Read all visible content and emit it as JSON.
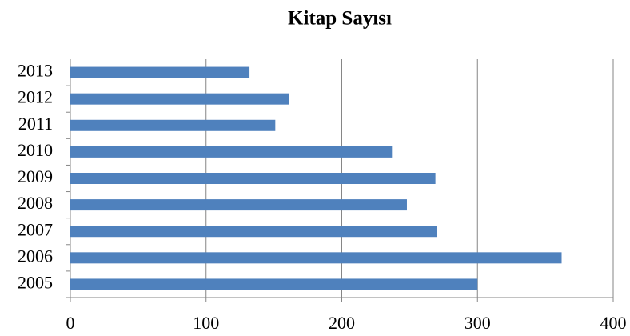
{
  "chart_data": {
    "type": "barh",
    "title": "Kitap Sayısı",
    "categories": [
      "2005",
      "2006",
      "2007",
      "2008",
      "2009",
      "2010",
      "2011",
      "2012",
      "2013"
    ],
    "values": [
      300,
      362,
      270,
      248,
      269,
      237,
      151,
      161,
      132
    ],
    "color": "#4f81bd",
    "xlim": [
      0,
      400
    ],
    "xticks": [
      0,
      100,
      200,
      300,
      400
    ],
    "grid": true
  }
}
